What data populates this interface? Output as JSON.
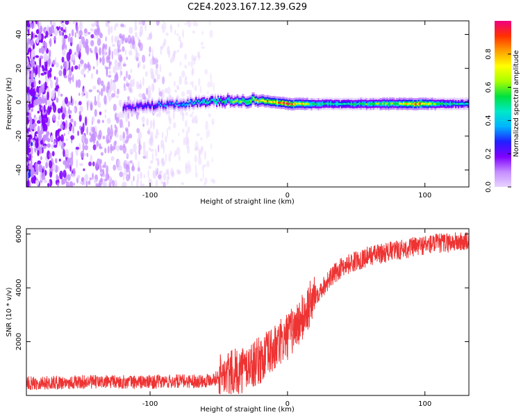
{
  "title": "C2E4.2023.167.12.39.G29",
  "chart_data": [
    {
      "type": "heatmap",
      "xlabel": "Height of straight line (km)",
      "ylabel": "Frequency (Hz)",
      "xlim": [
        -190,
        132
      ],
      "ylim": [
        -50,
        48
      ],
      "xticks": [
        -100,
        0,
        100
      ],
      "yticks": [
        -40,
        -20,
        0,
        20,
        40
      ],
      "grid": false,
      "colorbar": {
        "label": "Normalized spectral amplitude",
        "range": [
          0,
          1
        ],
        "ticks": [
          "0.0",
          "0.2",
          "0.4",
          "0.6",
          "0.8"
        ],
        "colors": [
          "#e8d4ff",
          "#c48cff",
          "#8000ff",
          "#2020ff",
          "#00b4ff",
          "#00e8c8",
          "#00e040",
          "#a8ff00",
          "#ffff00",
          "#ffa000",
          "#ff3000",
          "#f00080"
        ]
      },
      "ridge": {
        "x": [
          -120,
          -100,
          -80,
          -60,
          -40,
          -20,
          0,
          20,
          40,
          60,
          80,
          95,
          110,
          132
        ],
        "frequency_hz": [
          -3,
          -2,
          -1,
          0,
          1,
          1,
          -1,
          -1,
          -1,
          -1,
          -1,
          -1,
          -1,
          -1
        ],
        "amplitude": [
          0.25,
          0.3,
          0.35,
          0.45,
          0.55,
          0.7,
          0.85,
          0.5,
          0.45,
          0.55,
          0.6,
          0.8,
          0.5,
          0.4
        ]
      }
    },
    {
      "type": "line",
      "xlabel": "Height of straight line (km)",
      "ylabel": "SNR (10 * v/v)",
      "xlim": [
        -190,
        132
      ],
      "ylim": [
        0,
        6200
      ],
      "xticks": [
        -100,
        0,
        100
      ],
      "yticks": [
        2000,
        4000,
        6000
      ],
      "color": "#ee3333",
      "trend": {
        "x": [
          -190,
          -150,
          -100,
          -60,
          -40,
          -20,
          -10,
          0,
          10,
          20,
          30,
          40,
          60,
          80,
          100,
          120,
          132
        ],
        "y": [
          450,
          500,
          500,
          550,
          800,
          1300,
          1700,
          2200,
          2800,
          3700,
          4300,
          4800,
          5200,
          5400,
          5600,
          5700,
          5700
        ]
      }
    }
  ]
}
